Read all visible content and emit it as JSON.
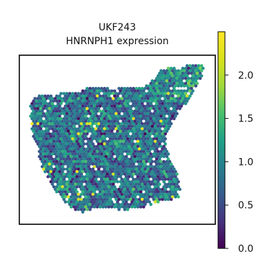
{
  "chart_data": {
    "type": "scatter",
    "subtype": "spatial-hexbin",
    "title_lines": [
      "UKF243",
      "HNRNPH1 expression"
    ],
    "xlabel": "",
    "ylabel": "",
    "axes_ticks": false,
    "grid": false,
    "legend": "none",
    "colormap": "viridis",
    "colorbar": {
      "orientation": "vertical",
      "placement": "right",
      "vmin": 0.0,
      "vmax": 2.5,
      "ticks": [
        0.0,
        0.5,
        1.0,
        1.5,
        2.0
      ],
      "tick_labels": [
        "0.0",
        "0.5",
        "1.0",
        "1.5",
        "2.0"
      ]
    },
    "expression_mean": 0.95,
    "colors": [
      "#440154",
      "#3b528b",
      "#21918c",
      "#5ec962",
      "#fde725"
    ]
  }
}
